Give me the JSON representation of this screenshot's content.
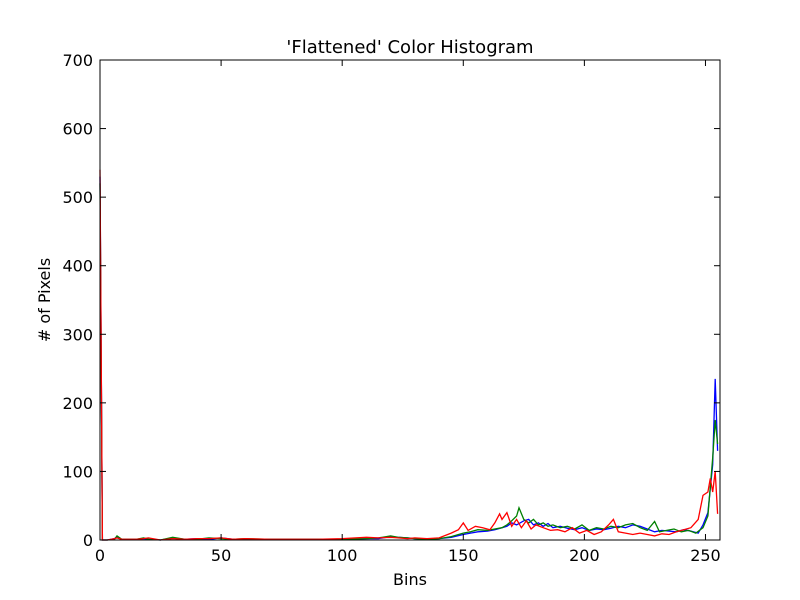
{
  "chart_data": {
    "type": "line",
    "title": "'Flattened' Color Histogram",
    "xlabel": "Bins",
    "ylabel": "# of Pixels",
    "xlim": [
      0,
      256
    ],
    "ylim": [
      0,
      700
    ],
    "xticks": [
      "0",
      "50",
      "100",
      "150",
      "200",
      "250"
    ],
    "yticks": [
      "0",
      "100",
      "200",
      "300",
      "400",
      "500",
      "600",
      "700"
    ],
    "grid": false,
    "legend": "none",
    "series": [
      {
        "color": "#0000ff",
        "points": [
          [
            0,
            530
          ],
          [
            1,
            0
          ],
          [
            3,
            0
          ],
          [
            6,
            2
          ],
          [
            7,
            5
          ],
          [
            9,
            1
          ],
          [
            15,
            1
          ],
          [
            18,
            2
          ],
          [
            20,
            1
          ],
          [
            25,
            0
          ],
          [
            30,
            3
          ],
          [
            35,
            1
          ],
          [
            40,
            2
          ],
          [
            45,
            1
          ],
          [
            50,
            3
          ],
          [
            55,
            1
          ],
          [
            60,
            1
          ],
          [
            70,
            1
          ],
          [
            80,
            1
          ],
          [
            90,
            1
          ],
          [
            100,
            1
          ],
          [
            110,
            2
          ],
          [
            115,
            2
          ],
          [
            120,
            5
          ],
          [
            123,
            4
          ],
          [
            127,
            3
          ],
          [
            130,
            2
          ],
          [
            135,
            1
          ],
          [
            140,
            2
          ],
          [
            145,
            4
          ],
          [
            150,
            8
          ],
          [
            153,
            10
          ],
          [
            156,
            12
          ],
          [
            160,
            13
          ],
          [
            163,
            15
          ],
          [
            166,
            18
          ],
          [
            168,
            20
          ],
          [
            170,
            25
          ],
          [
            172,
            22
          ],
          [
            175,
            28
          ],
          [
            177,
            30
          ],
          [
            179,
            22
          ],
          [
            181,
            25
          ],
          [
            183,
            20
          ],
          [
            185,
            24
          ],
          [
            187,
            18
          ],
          [
            190,
            20
          ],
          [
            193,
            17
          ],
          [
            196,
            15
          ],
          [
            199,
            18
          ],
          [
            202,
            14
          ],
          [
            205,
            16
          ],
          [
            208,
            15
          ],
          [
            211,
            17
          ],
          [
            214,
            20
          ],
          [
            217,
            18
          ],
          [
            220,
            22
          ],
          [
            223,
            20
          ],
          [
            226,
            16
          ],
          [
            229,
            12
          ],
          [
            232,
            14
          ],
          [
            235,
            13
          ],
          [
            238,
            12
          ],
          [
            241,
            15
          ],
          [
            244,
            13
          ],
          [
            247,
            10
          ],
          [
            249,
            22
          ],
          [
            251,
            40
          ],
          [
            253,
            110
          ],
          [
            254,
            235
          ],
          [
            255,
            130
          ]
        ]
      },
      {
        "color": "#008000",
        "points": [
          [
            0,
            520
          ],
          [
            1,
            0
          ],
          [
            3,
            0
          ],
          [
            6,
            1
          ],
          [
            7,
            6
          ],
          [
            9,
            1
          ],
          [
            15,
            1
          ],
          [
            18,
            3
          ],
          [
            20,
            1
          ],
          [
            25,
            0
          ],
          [
            30,
            4
          ],
          [
            35,
            1
          ],
          [
            40,
            1
          ],
          [
            45,
            3
          ],
          [
            50,
            2
          ],
          [
            55,
            1
          ],
          [
            60,
            2
          ],
          [
            70,
            1
          ],
          [
            80,
            1
          ],
          [
            90,
            1
          ],
          [
            100,
            1
          ],
          [
            110,
            2
          ],
          [
            115,
            3
          ],
          [
            120,
            6
          ],
          [
            123,
            4
          ],
          [
            127,
            3
          ],
          [
            130,
            2
          ],
          [
            135,
            1
          ],
          [
            140,
            2
          ],
          [
            145,
            5
          ],
          [
            150,
            10
          ],
          [
            153,
            12
          ],
          [
            156,
            15
          ],
          [
            160,
            14
          ],
          [
            163,
            16
          ],
          [
            166,
            18
          ],
          [
            168,
            22
          ],
          [
            170,
            28
          ],
          [
            172,
            35
          ],
          [
            173,
            47
          ],
          [
            175,
            30
          ],
          [
            177,
            25
          ],
          [
            179,
            30
          ],
          [
            181,
            22
          ],
          [
            183,
            25
          ],
          [
            185,
            20
          ],
          [
            187,
            22
          ],
          [
            190,
            18
          ],
          [
            193,
            20
          ],
          [
            196,
            16
          ],
          [
            199,
            22
          ],
          [
            202,
            14
          ],
          [
            205,
            18
          ],
          [
            208,
            16
          ],
          [
            211,
            20
          ],
          [
            214,
            18
          ],
          [
            217,
            22
          ],
          [
            220,
            24
          ],
          [
            223,
            18
          ],
          [
            226,
            14
          ],
          [
            229,
            27
          ],
          [
            231,
            12
          ],
          [
            234,
            14
          ],
          [
            237,
            16
          ],
          [
            240,
            12
          ],
          [
            243,
            14
          ],
          [
            246,
            10
          ],
          [
            249,
            18
          ],
          [
            251,
            35
          ],
          [
            253,
            120
          ],
          [
            254,
            175
          ],
          [
            255,
            140
          ]
        ]
      },
      {
        "color": "#ff0000",
        "points": [
          [
            0,
            540
          ],
          [
            1,
            0
          ],
          [
            3,
            0
          ],
          [
            6,
            2
          ],
          [
            7,
            3
          ],
          [
            9,
            1
          ],
          [
            15,
            1
          ],
          [
            18,
            2
          ],
          [
            20,
            3
          ],
          [
            25,
            0
          ],
          [
            30,
            2
          ],
          [
            35,
            1
          ],
          [
            40,
            2
          ],
          [
            45,
            2
          ],
          [
            50,
            3
          ],
          [
            55,
            1
          ],
          [
            60,
            2
          ],
          [
            70,
            1
          ],
          [
            80,
            1
          ],
          [
            90,
            1
          ],
          [
            100,
            2
          ],
          [
            110,
            4
          ],
          [
            115,
            3
          ],
          [
            120,
            4
          ],
          [
            123,
            3
          ],
          [
            127,
            2
          ],
          [
            130,
            3
          ],
          [
            135,
            2
          ],
          [
            140,
            3
          ],
          [
            145,
            10
          ],
          [
            148,
            15
          ],
          [
            150,
            25
          ],
          [
            152,
            14
          ],
          [
            155,
            20
          ],
          [
            158,
            18
          ],
          [
            161,
            15
          ],
          [
            163,
            25
          ],
          [
            165,
            38
          ],
          [
            166,
            30
          ],
          [
            168,
            40
          ],
          [
            170,
            20
          ],
          [
            172,
            30
          ],
          [
            174,
            18
          ],
          [
            176,
            28
          ],
          [
            178,
            16
          ],
          [
            180,
            22
          ],
          [
            183,
            18
          ],
          [
            186,
            14
          ],
          [
            189,
            15
          ],
          [
            192,
            12
          ],
          [
            195,
            18
          ],
          [
            198,
            10
          ],
          [
            201,
            14
          ],
          [
            204,
            8
          ],
          [
            207,
            12
          ],
          [
            210,
            22
          ],
          [
            212,
            30
          ],
          [
            214,
            12
          ],
          [
            217,
            10
          ],
          [
            220,
            8
          ],
          [
            223,
            10
          ],
          [
            226,
            8
          ],
          [
            229,
            6
          ],
          [
            232,
            9
          ],
          [
            235,
            8
          ],
          [
            238,
            12
          ],
          [
            241,
            15
          ],
          [
            244,
            18
          ],
          [
            247,
            30
          ],
          [
            249,
            65
          ],
          [
            251,
            70
          ],
          [
            252,
            90
          ],
          [
            253,
            70
          ],
          [
            254,
            100
          ],
          [
            255,
            38
          ]
        ]
      }
    ]
  }
}
